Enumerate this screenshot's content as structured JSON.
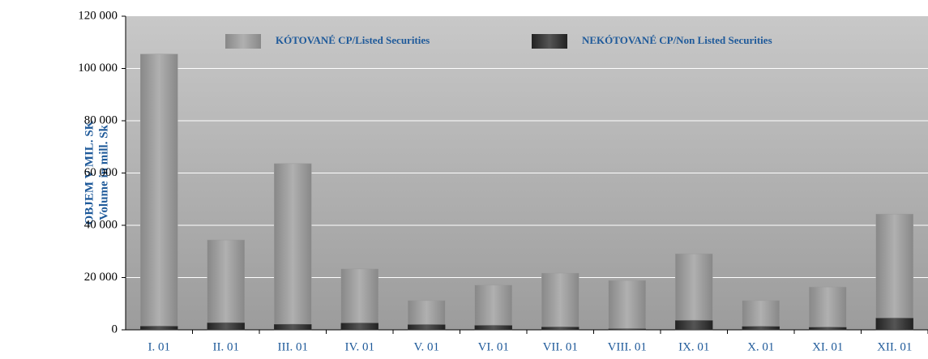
{
  "chart_data": {
    "type": "stacked_bar",
    "y_label": [
      "OBJEM V MIL. SK",
      "Volume in mill. Sk"
    ],
    "categories": [
      "I. 01",
      "II. 01",
      "III. 01",
      "IV. 01",
      "V. 01",
      "VI. 01",
      "VII. 01",
      "VIII. 01",
      "IX. 01",
      "X. 01",
      "XI. 01",
      "XII. 01"
    ],
    "series": [
      {
        "name": "KÓTOVANÉ CP/Listed Securities",
        "color": "#9a9a9a",
        "values": [
          104000,
          31600,
          61400,
          20600,
          9100,
          15300,
          20500,
          18400,
          25400,
          9800,
          15300,
          39700
        ]
      },
      {
        "name": "NEKÓTOVANÉ CP/Non Listed Securities",
        "color": "#3a3a3a",
        "values": [
          1500,
          2800,
          2200,
          2700,
          2100,
          1800,
          1200,
          500,
          3700,
          1400,
          1100,
          4600
        ]
      }
    ],
    "ylim": [
      0,
      120000
    ],
    "yticks": [
      0,
      {
        "value": 20000,
        "label": "20 000"
      },
      {
        "value": 40000,
        "label": "40 000"
      },
      {
        "value": 60000,
        "label": "60 000"
      },
      {
        "value": 80000,
        "label": "80 000"
      },
      {
        "value": 100000,
        "label": "100 000"
      },
      {
        "value": 120000,
        "label": "120 000"
      }
    ],
    "grid": true
  }
}
